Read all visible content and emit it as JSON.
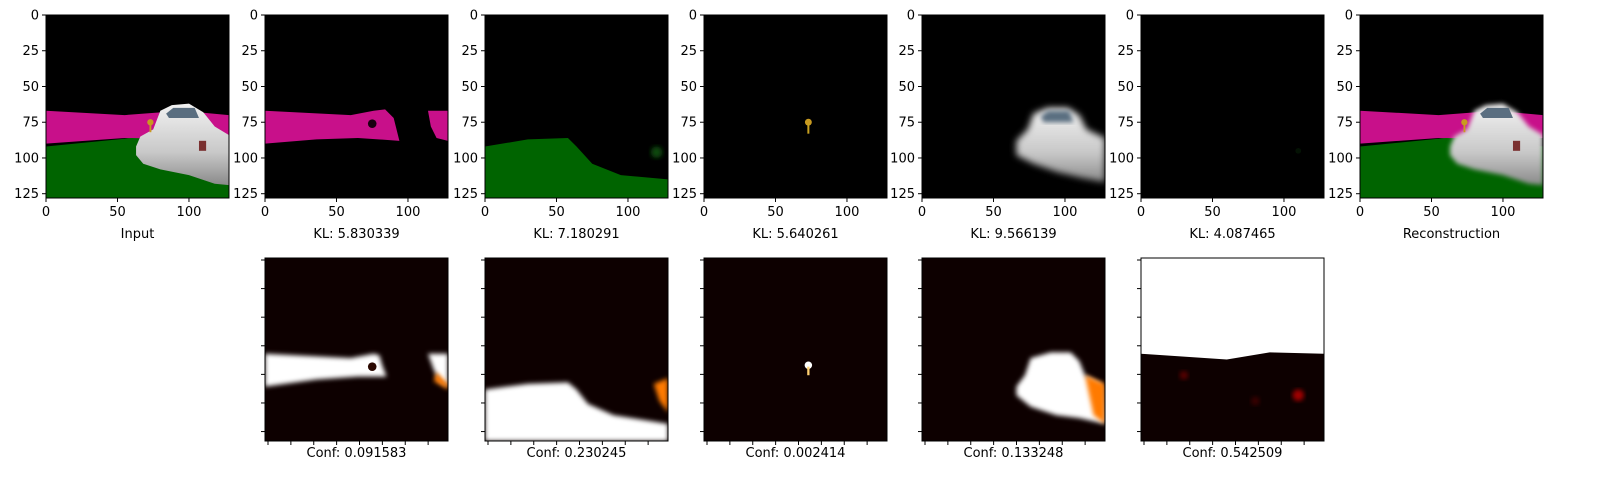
{
  "chart_data": [
    {
      "type": "heatmap",
      "panel": "image",
      "caption": "Input",
      "xticks": [
        0,
        50,
        100
      ],
      "yticks": [
        0,
        25,
        50,
        75,
        100,
        125
      ],
      "xlim": [
        0,
        128
      ],
      "ylim": [
        128,
        0
      ],
      "scene": "full"
    },
    {
      "type": "heatmap",
      "panel": "image",
      "caption": "KL: 5.830339",
      "xticks": [
        0,
        50,
        100
      ],
      "yticks": [
        0,
        25,
        50,
        75,
        100,
        125
      ],
      "xlim": [
        0,
        128
      ],
      "ylim": [
        128,
        0
      ],
      "scene": "wall"
    },
    {
      "type": "heatmap",
      "panel": "image",
      "caption": "KL: 7.180291",
      "xticks": [
        0,
        50,
        100
      ],
      "yticks": [
        0,
        25,
        50,
        75,
        100,
        125
      ],
      "xlim": [
        0,
        128
      ],
      "ylim": [
        128,
        0
      ],
      "scene": "ground"
    },
    {
      "type": "heatmap",
      "panel": "image",
      "caption": "KL: 5.640261",
      "xticks": [
        0,
        50,
        100
      ],
      "yticks": [
        0,
        25,
        50,
        75,
        100,
        125
      ],
      "xlim": [
        0,
        128
      ],
      "ylim": [
        128,
        0
      ],
      "scene": "object"
    },
    {
      "type": "heatmap",
      "panel": "image",
      "caption": "KL: 9.566139",
      "xticks": [
        0,
        50,
        100
      ],
      "yticks": [
        0,
        25,
        50,
        75,
        100,
        125
      ],
      "xlim": [
        0,
        128
      ],
      "ylim": [
        128,
        0
      ],
      "scene": "car"
    },
    {
      "type": "heatmap",
      "panel": "image",
      "caption": "KL: 4.087465",
      "xticks": [
        0,
        50,
        100
      ],
      "yticks": [
        0,
        25,
        50,
        75,
        100,
        125
      ],
      "xlim": [
        0,
        128
      ],
      "ylim": [
        128,
        0
      ],
      "scene": "empty"
    },
    {
      "type": "heatmap",
      "panel": "image",
      "caption": "Reconstruction",
      "xticks": [
        0,
        50,
        100
      ],
      "yticks": [
        0,
        25,
        50,
        75,
        100,
        125
      ],
      "xlim": [
        0,
        128
      ],
      "ylim": [
        128,
        0
      ],
      "scene": "recon"
    },
    {
      "type": "heatmap",
      "panel": "mask",
      "caption": "Conf: 0.091583",
      "colormap": "hot",
      "scene": "wall"
    },
    {
      "type": "heatmap",
      "panel": "mask",
      "caption": "Conf: 0.230245",
      "colormap": "hot",
      "scene": "ground"
    },
    {
      "type": "heatmap",
      "panel": "mask",
      "caption": "Conf: 0.002414",
      "colormap": "hot",
      "scene": "object"
    },
    {
      "type": "heatmap",
      "panel": "mask",
      "caption": "Conf: 0.133248",
      "colormap": "hot",
      "scene": "car"
    },
    {
      "type": "heatmap",
      "panel": "mask",
      "caption": "Conf: 0.542509",
      "colormap": "hot",
      "scene": "background"
    }
  ],
  "colors": {
    "wall": "#c8108a",
    "ground": "#006400",
    "car_body": "#dcdcdc",
    "car_window": "#5a6e80",
    "object": "#c89a20",
    "mask_dark": "#0d0000",
    "mask_bright": "#ffffff",
    "mask_mid": "#ff7a00"
  }
}
